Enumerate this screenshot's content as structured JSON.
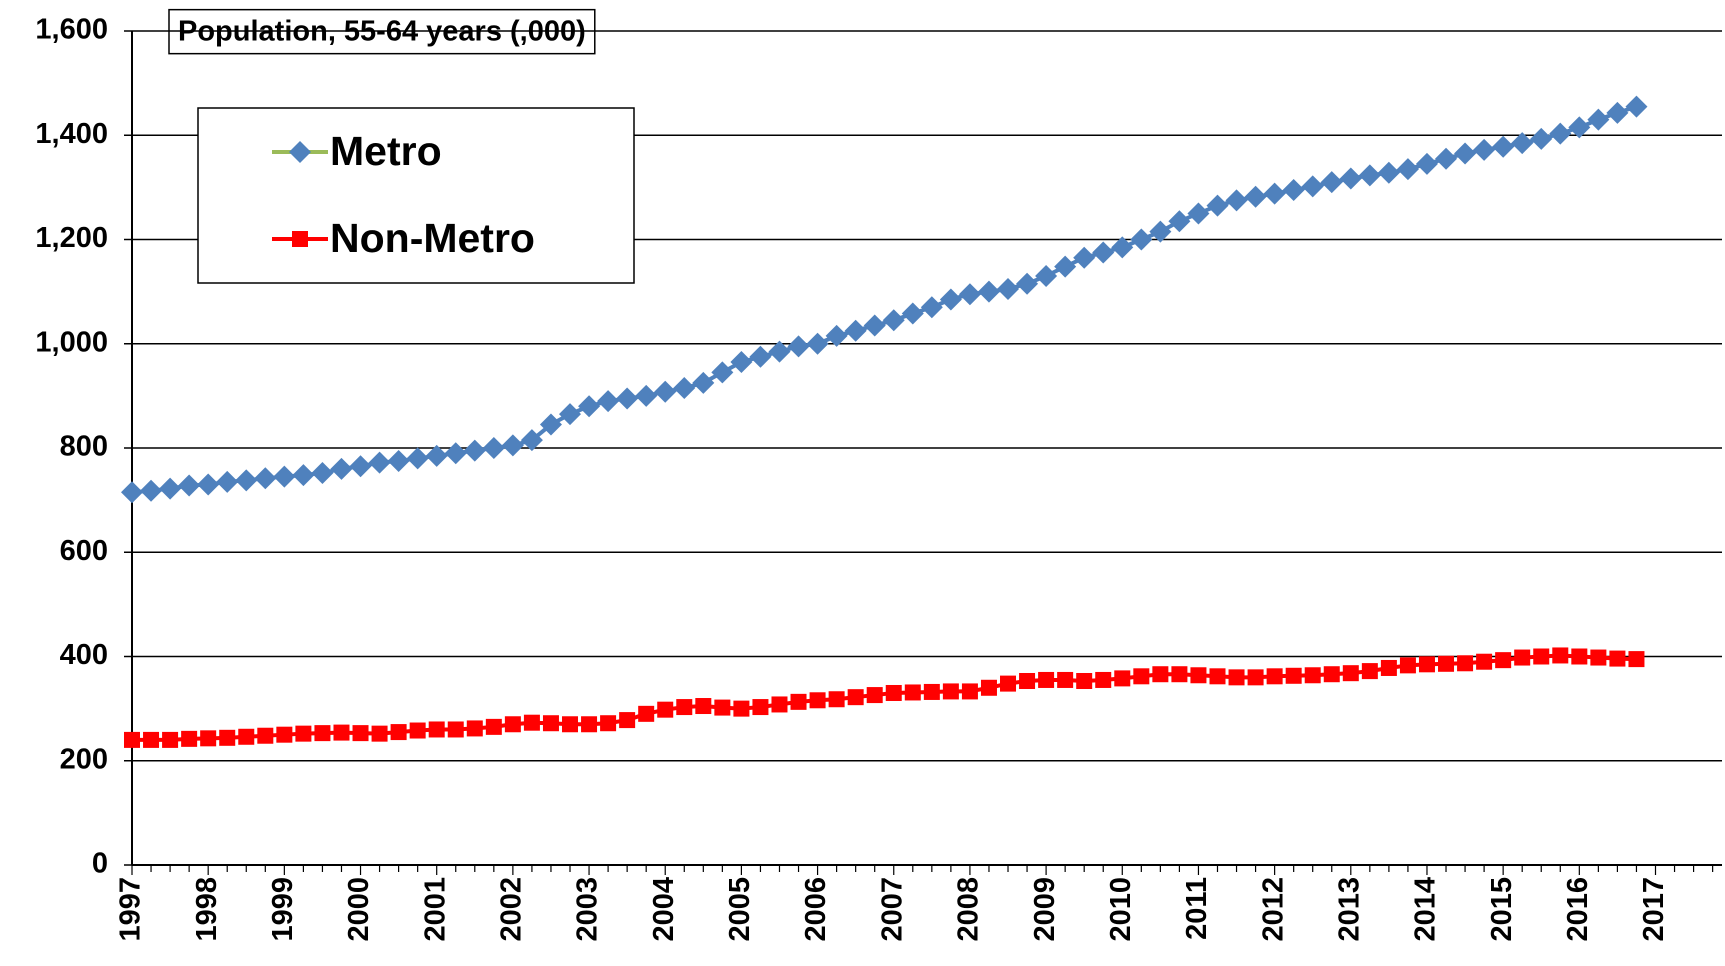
{
  "chart_data": {
    "type": "line",
    "title": "Population, 55-64 years (,000)",
    "categories": [
      "1997",
      null,
      null,
      null,
      "1998",
      null,
      null,
      null,
      "1999",
      null,
      null,
      null,
      "2000",
      null,
      null,
      null,
      "2001",
      null,
      null,
      null,
      "2002",
      null,
      null,
      null,
      "2003",
      null,
      null,
      null,
      "2004",
      null,
      null,
      null,
      "2005",
      null,
      null,
      null,
      "2006",
      null,
      null,
      null,
      "2007",
      null,
      null,
      null,
      "2008",
      null,
      null,
      null,
      "2009",
      null,
      null,
      null,
      "2010",
      null,
      null,
      null,
      "2011",
      null,
      null,
      null,
      "2012",
      null,
      null,
      null,
      "2013",
      null,
      null,
      null,
      "2014",
      null,
      null,
      null,
      "2015",
      null,
      null,
      null,
      "2016",
      null,
      null,
      null,
      "2017"
    ],
    "series": [
      {
        "name": "Metro",
        "color": "#4f81bd",
        "line_color": "#9bbb59",
        "marker": "diamond",
        "values": [
          715,
          718,
          722,
          728,
          730,
          735,
          738,
          742,
          745,
          748,
          752,
          760,
          765,
          772,
          775,
          780,
          785,
          790,
          795,
          800,
          805,
          815,
          845,
          865,
          880,
          890,
          895,
          900,
          908,
          915,
          925,
          945,
          965,
          975,
          985,
          995,
          1000,
          1015,
          1025,
          1035,
          1045,
          1058,
          1070,
          1085,
          1095,
          1100,
          1105,
          1115,
          1130,
          1148,
          1165,
          1175,
          1185,
          1200,
          1215,
          1235,
          1250,
          1265,
          1275,
          1282,
          1288,
          1295,
          1302,
          1310,
          1317,
          1323,
          1328,
          1335,
          1345,
          1355,
          1365,
          1372,
          1378,
          1385,
          1393,
          1403,
          1415,
          1430,
          1443,
          1455,
          null
        ]
      },
      {
        "name": "Non-Metro",
        "color": "#ff0000",
        "line_color": "#ff0000",
        "marker": "square",
        "values": [
          240,
          240,
          240,
          242,
          243,
          244,
          246,
          248,
          250,
          252,
          253,
          254,
          253,
          252,
          255,
          258,
          260,
          260,
          262,
          265,
          270,
          273,
          272,
          270,
          270,
          272,
          278,
          290,
          298,
          303,
          305,
          302,
          300,
          303,
          308,
          313,
          316,
          318,
          322,
          326,
          330,
          331,
          332,
          333,
          333,
          340,
          348,
          353,
          355,
          355,
          353,
          355,
          358,
          362,
          366,
          366,
          364,
          362,
          360,
          360,
          362,
          363,
          364,
          366,
          368,
          372,
          378,
          383,
          385,
          386,
          387,
          390,
          393,
          398,
          400,
          402,
          400,
          398,
          396,
          395,
          null
        ]
      }
    ],
    "ylim": [
      0,
      1600
    ],
    "yticks": [
      0,
      200,
      400,
      600,
      800,
      {
        "value": 1000,
        "label": "1,000"
      },
      {
        "value": 1200,
        "label": "1,200"
      },
      {
        "value": 1400,
        "label": "1,400"
      },
      {
        "value": 1600,
        "label": "1,600"
      }
    ],
    "grid": true,
    "legend": "upper left"
  }
}
